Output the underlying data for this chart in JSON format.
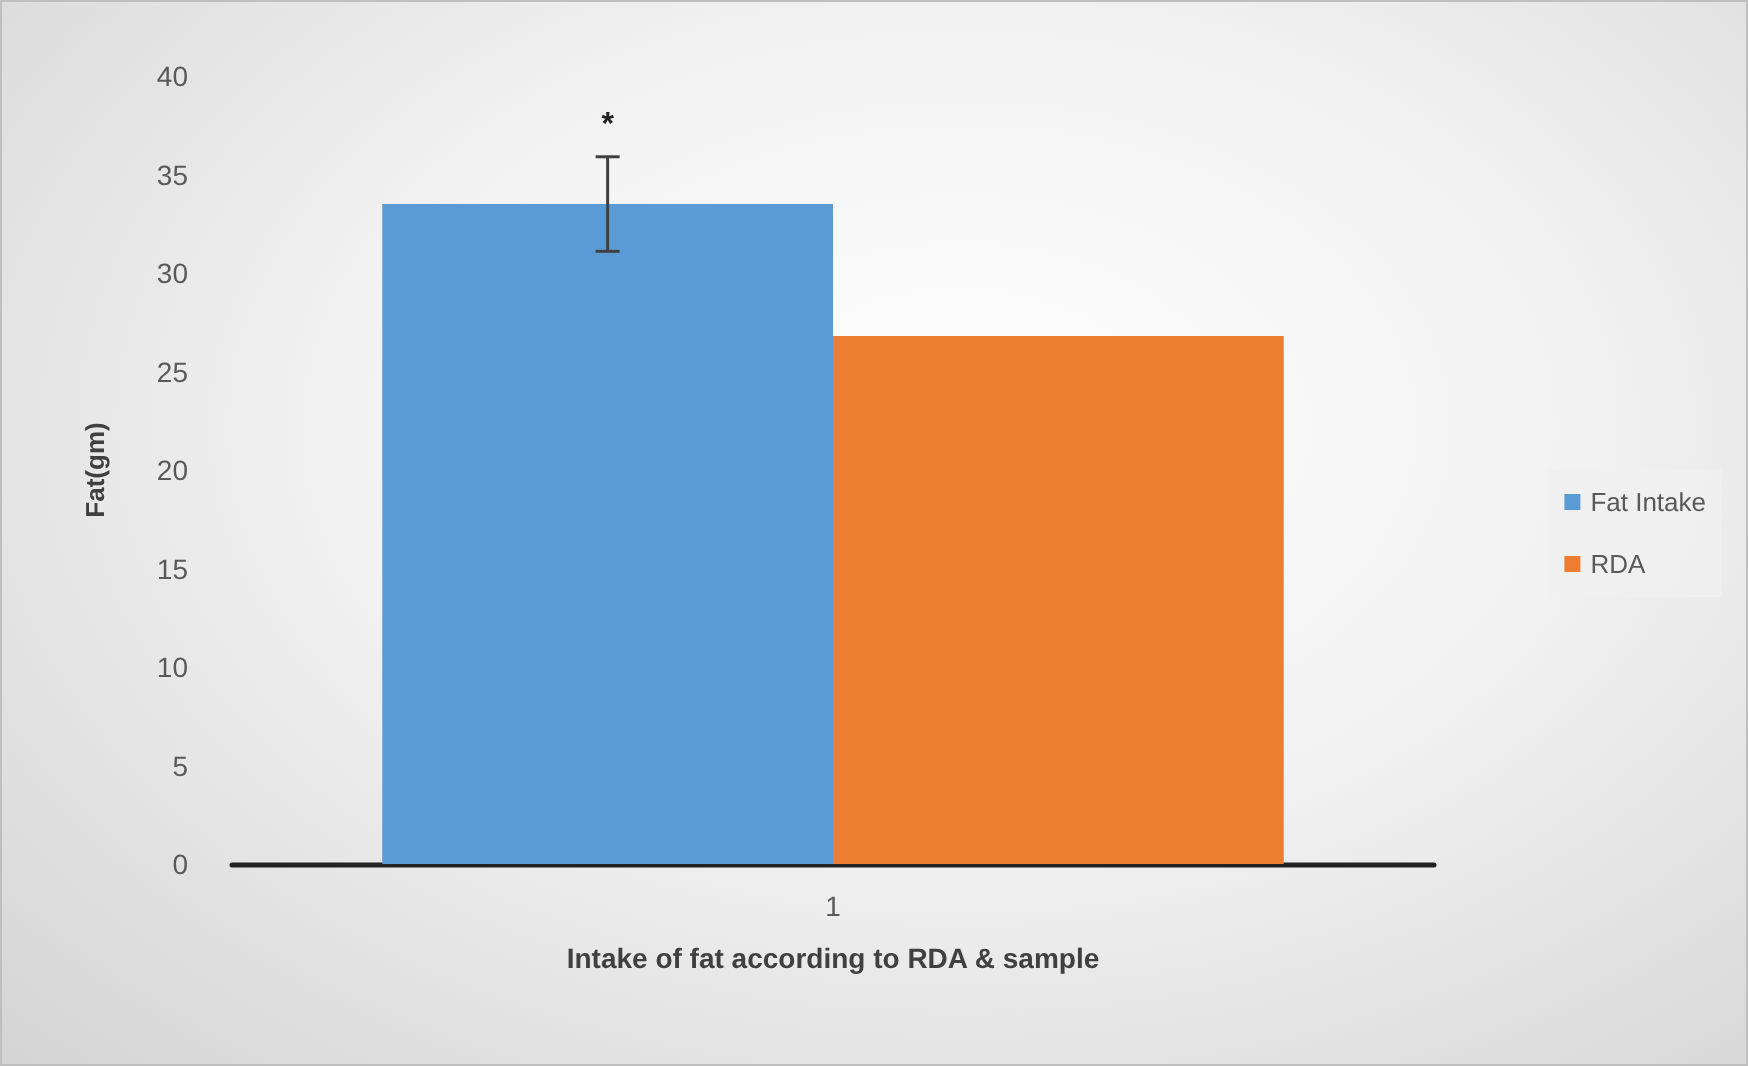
{
  "chart_data": {
    "type": "bar",
    "xlabel": "Intake of fat according to RDA & sample",
    "ylabel": "Fat(gm)",
    "categories": [
      "1"
    ],
    "series": [
      {
        "name": "Fat Intake",
        "color": "#5b9bd5",
        "values": [
          33.5
        ],
        "errors": [
          2.4
        ]
      },
      {
        "name": "RDA",
        "color": "#ed7d31",
        "values": [
          26.8
        ]
      }
    ],
    "annotations": [
      "*"
    ],
    "ylim": [
      0,
      40
    ],
    "yticks": [
      0,
      5,
      10,
      15,
      20,
      25,
      30,
      35,
      40
    ],
    "grid": false,
    "legend": "right"
  }
}
